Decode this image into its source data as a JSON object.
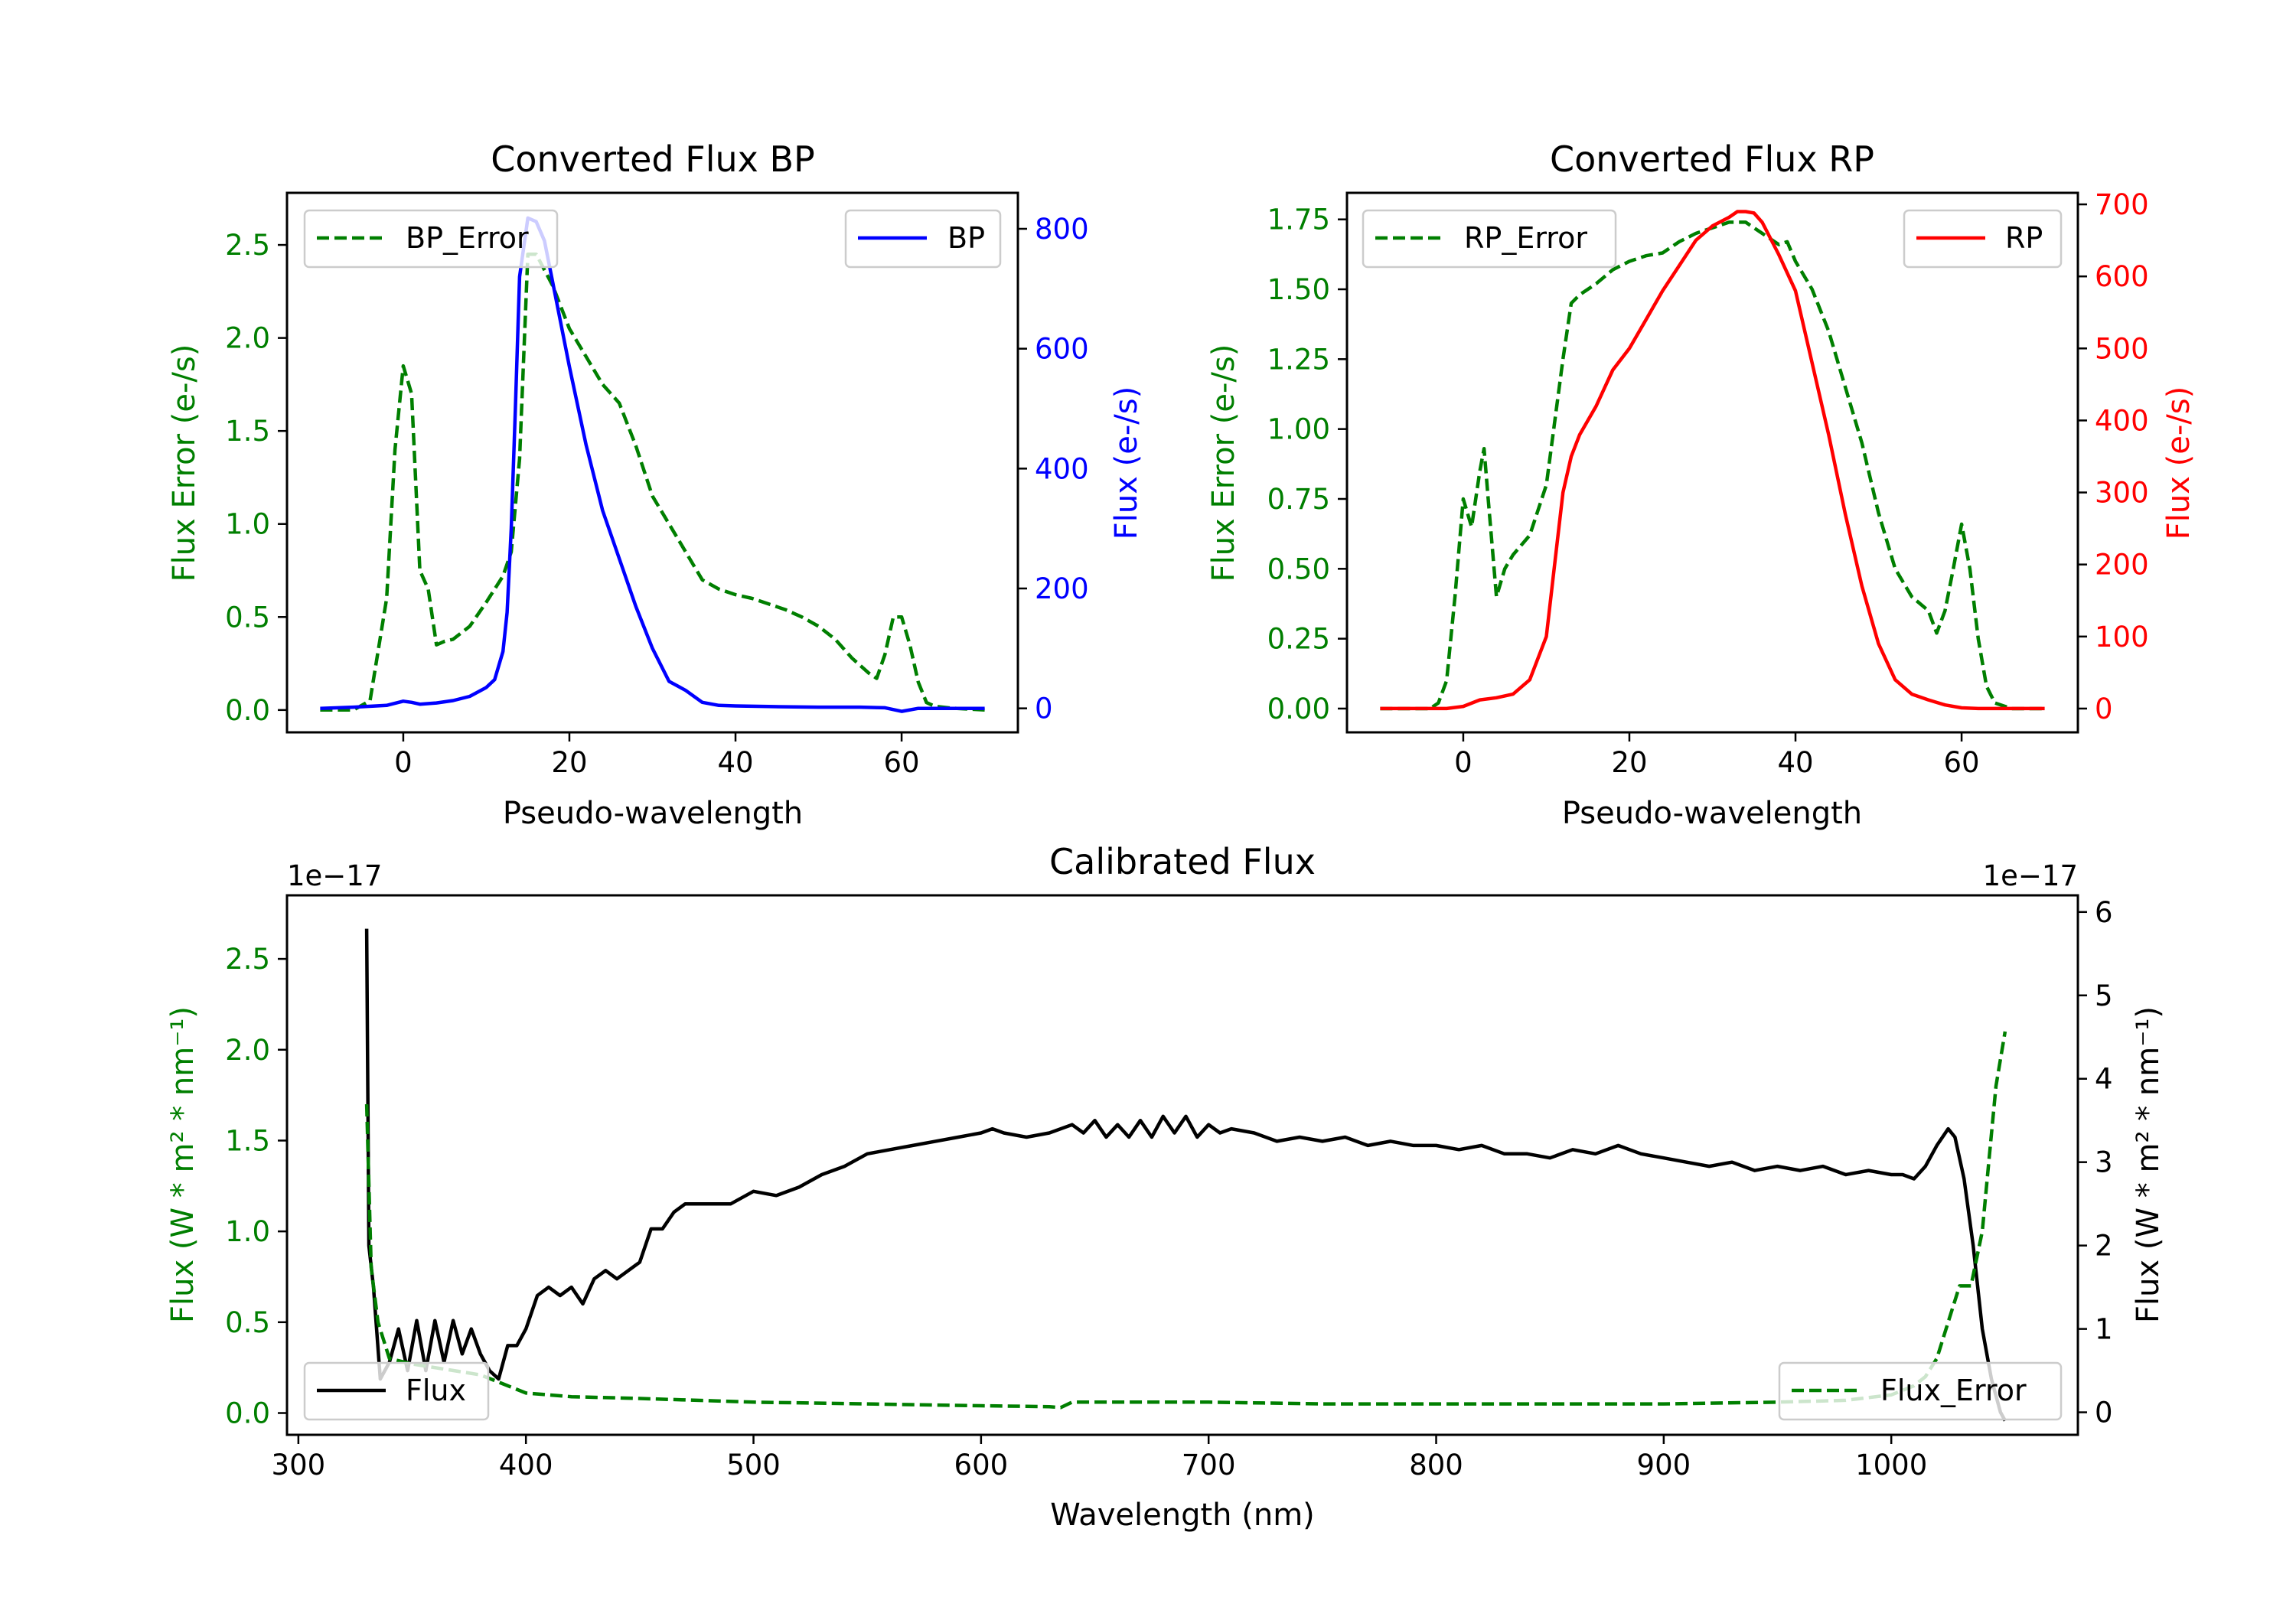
{
  "colors": {
    "bp": "#0000ff",
    "rp": "#ff0000",
    "error": "#007f00",
    "flux": "#000000",
    "axis": "#000000"
  },
  "chart_data": [
    {
      "type": "line",
      "id": "bp",
      "title": "Converted Flux BP",
      "xlabel": "Pseudo-wavelength",
      "xlim": [
        -14,
        74
      ],
      "xticks": [
        0,
        20,
        40,
        60
      ],
      "left_axis": {
        "label": "Flux Error (e-/s)",
        "color": "#007f00",
        "ylim": [
          -0.12,
          2.78
        ],
        "ticks": [
          0.0,
          0.5,
          1.0,
          1.5,
          2.0,
          2.5
        ],
        "tick_labels": [
          "0.0",
          "0.5",
          "1.0",
          "1.5",
          "2.0",
          "2.5"
        ]
      },
      "right_axis": {
        "label": "Flux (e-/s)",
        "color": "#0000ff",
        "ylim": [
          -40,
          860
        ],
        "ticks": [
          0,
          200,
          400,
          600,
          800
        ],
        "tick_labels": [
          "0",
          "200",
          "400",
          "600",
          "800"
        ]
      },
      "legend_left": "BP_Error",
      "legend_right": "BP",
      "series": [
        {
          "name": "BP_Error",
          "axis": "left",
          "style": "dashed",
          "color": "#007f00",
          "x": [
            -10,
            -6,
            -4,
            -2,
            -1,
            0,
            1,
            2,
            3,
            4,
            5,
            6,
            8,
            10,
            12,
            13,
            14,
            15,
            16,
            18,
            20,
            22,
            24,
            26,
            28,
            30,
            32,
            34,
            36,
            38,
            40,
            42,
            44,
            46,
            48,
            50,
            52,
            54,
            56,
            57,
            58,
            59,
            60,
            61,
            62,
            63,
            64,
            66,
            70
          ],
          "y": [
            0.0,
            0.0,
            0.05,
            0.6,
            1.4,
            1.85,
            1.7,
            0.75,
            0.65,
            0.35,
            0.37,
            0.38,
            0.45,
            0.58,
            0.72,
            0.85,
            1.35,
            2.45,
            2.45,
            2.28,
            2.05,
            1.9,
            1.75,
            1.65,
            1.42,
            1.15,
            1.0,
            0.85,
            0.7,
            0.65,
            0.62,
            0.6,
            0.57,
            0.54,
            0.5,
            0.45,
            0.38,
            0.28,
            0.2,
            0.17,
            0.3,
            0.5,
            0.5,
            0.35,
            0.15,
            0.04,
            0.02,
            0.01,
            0.0
          ]
        },
        {
          "name": "BP",
          "axis": "right",
          "style": "solid",
          "color": "#0000ff",
          "x": [
            -10,
            -6,
            -2,
            0,
            1,
            2,
            4,
            6,
            8,
            10,
            11,
            12,
            12.5,
            13,
            13.5,
            14,
            15,
            16,
            17,
            18,
            20,
            22,
            24,
            26,
            28,
            30,
            32,
            34,
            36,
            38,
            40,
            44,
            50,
            55,
            58,
            60,
            62,
            66,
            70
          ],
          "y": [
            0,
            2,
            5,
            12,
            10,
            7,
            9,
            13,
            20,
            35,
            48,
            95,
            160,
            300,
            500,
            720,
            818,
            812,
            780,
            710,
            570,
            440,
            330,
            250,
            170,
            100,
            45,
            30,
            10,
            5,
            4,
            3,
            2,
            2,
            1,
            -5,
            0,
            0,
            0
          ]
        }
      ]
    },
    {
      "type": "line",
      "id": "rp",
      "title": "Converted Flux RP",
      "xlabel": "Pseudo-wavelength",
      "xlim": [
        -14,
        74
      ],
      "xticks": [
        0,
        20,
        40,
        60
      ],
      "left_axis": {
        "label": "Flux Error (e-/s)",
        "color": "#007f00",
        "ylim": [
          -0.085,
          1.845
        ],
        "ticks": [
          0.0,
          0.25,
          0.5,
          0.75,
          1.0,
          1.25,
          1.5,
          1.75
        ],
        "tick_labels": [
          "0.00",
          "0.25",
          "0.50",
          "0.75",
          "1.00",
          "1.25",
          "1.50",
          "1.75"
        ]
      },
      "right_axis": {
        "label": "Flux (e-/s)",
        "color": "#ff0000",
        "ylim": [
          -33,
          716
        ],
        "ticks": [
          0,
          100,
          200,
          300,
          400,
          500,
          600,
          700
        ],
        "tick_labels": [
          "0",
          "100",
          "200",
          "300",
          "400",
          "500",
          "600",
          "700"
        ]
      },
      "legend_left": "RP_Error",
      "legend_right": "RP",
      "series": [
        {
          "name": "RP_Error",
          "axis": "left",
          "style": "dashed",
          "color": "#007f00",
          "x": [
            -10,
            -4,
            -3,
            -2,
            -1,
            0,
            1,
            2,
            2.5,
            3,
            4,
            5,
            6,
            8,
            10,
            12,
            13,
            14,
            16,
            18,
            20,
            22,
            24,
            26,
            28,
            30,
            32,
            34,
            36,
            38,
            39,
            40,
            42,
            44,
            46,
            48,
            50,
            52,
            54,
            56,
            57,
            58,
            59,
            60,
            61,
            62,
            63,
            64,
            66,
            70
          ],
          "y": [
            0.0,
            0.0,
            0.02,
            0.1,
            0.4,
            0.75,
            0.65,
            0.85,
            0.93,
            0.75,
            0.4,
            0.5,
            0.55,
            0.62,
            0.8,
            1.25,
            1.45,
            1.48,
            1.52,
            1.57,
            1.6,
            1.62,
            1.63,
            1.67,
            1.7,
            1.72,
            1.74,
            1.74,
            1.7,
            1.66,
            1.67,
            1.6,
            1.5,
            1.35,
            1.15,
            0.95,
            0.7,
            0.5,
            0.4,
            0.35,
            0.27,
            0.35,
            0.5,
            0.66,
            0.5,
            0.25,
            0.08,
            0.02,
            0.0,
            0.0
          ]
        },
        {
          "name": "RP",
          "axis": "right",
          "style": "solid",
          "color": "#ff0000",
          "x": [
            -10,
            -2,
            0,
            2,
            4,
            6,
            8,
            10,
            11,
            12,
            13,
            14,
            16,
            18,
            20,
            22,
            24,
            26,
            28,
            30,
            32,
            33,
            34,
            35,
            36,
            38,
            40,
            42,
            44,
            46,
            48,
            50,
            52,
            54,
            56,
            58,
            60,
            62,
            66,
            70
          ],
          "y": [
            0,
            0,
            3,
            12,
            15,
            20,
            40,
            100,
            200,
            300,
            350,
            380,
            420,
            470,
            500,
            540,
            580,
            615,
            650,
            670,
            682,
            690,
            690,
            688,
            675,
            630,
            580,
            480,
            380,
            270,
            170,
            90,
            40,
            20,
            12,
            5,
            1,
            0,
            0,
            0
          ]
        }
      ]
    },
    {
      "type": "line",
      "id": "calibrated",
      "title": "Calibrated Flux",
      "xlabel": "Wavelength (nm)",
      "xlim": [
        295,
        1082
      ],
      "xticks": [
        300,
        400,
        500,
        600,
        700,
        800,
        900,
        1000
      ],
      "left_axis": {
        "label": "Flux (W * m² * nm⁻¹)",
        "color": "#007f00",
        "offset_text": "1e−17",
        "ylim": [
          -0.12,
          2.85
        ],
        "ticks": [
          0.0,
          0.5,
          1.0,
          1.5,
          2.0,
          2.5
        ],
        "tick_labels": [
          "0.0",
          "0.5",
          "1.0",
          "1.5",
          "2.0",
          "2.5"
        ]
      },
      "right_axis": {
        "label": "Flux (W * m² * nm⁻¹)",
        "color": "#000000",
        "offset_text": "1e−17",
        "ylim": [
          -0.27,
          6.2
        ],
        "ticks": [
          0,
          1,
          2,
          3,
          4,
          5,
          6
        ],
        "tick_labels": [
          "0",
          "1",
          "2",
          "3",
          "4",
          "5",
          "6"
        ]
      },
      "legend_left": "Flux",
      "legend_right": "Flux_Error",
      "series": [
        {
          "name": "Flux",
          "axis": "right",
          "style": "solid",
          "color": "#000000",
          "x": [
            330,
            331,
            333,
            336,
            340,
            344,
            348,
            352,
            356,
            360,
            364,
            368,
            372,
            376,
            380,
            384,
            388,
            392,
            396,
            400,
            405,
            410,
            415,
            420,
            425,
            430,
            435,
            440,
            445,
            450,
            455,
            460,
            465,
            470,
            480,
            490,
            500,
            510,
            520,
            530,
            540,
            550,
            560,
            570,
            580,
            590,
            600,
            605,
            610,
            620,
            630,
            640,
            645,
            650,
            655,
            660,
            665,
            670,
            675,
            680,
            685,
            690,
            695,
            700,
            705,
            710,
            720,
            730,
            740,
            750,
            760,
            770,
            780,
            790,
            800,
            810,
            820,
            830,
            840,
            850,
            860,
            870,
            880,
            890,
            900,
            910,
            920,
            930,
            940,
            950,
            960,
            970,
            980,
            990,
            1000,
            1005,
            1010,
            1015,
            1020,
            1025,
            1028,
            1032,
            1036,
            1040,
            1044,
            1048,
            1050
          ],
          "y": [
            5.8,
            2.0,
            1.5,
            0.4,
            0.6,
            1.0,
            0.5,
            1.1,
            0.5,
            1.1,
            0.6,
            1.1,
            0.7,
            1.0,
            0.7,
            0.5,
            0.4,
            0.8,
            0.8,
            1.0,
            1.4,
            1.5,
            1.4,
            1.5,
            1.3,
            1.6,
            1.7,
            1.6,
            1.7,
            1.8,
            2.2,
            2.2,
            2.4,
            2.5,
            2.5,
            2.5,
            2.65,
            2.6,
            2.7,
            2.85,
            2.95,
            3.1,
            3.15,
            3.2,
            3.25,
            3.3,
            3.35,
            3.4,
            3.35,
            3.3,
            3.35,
            3.45,
            3.35,
            3.5,
            3.3,
            3.45,
            3.3,
            3.5,
            3.3,
            3.55,
            3.35,
            3.55,
            3.3,
            3.45,
            3.35,
            3.4,
            3.35,
            3.25,
            3.3,
            3.25,
            3.3,
            3.2,
            3.25,
            3.2,
            3.2,
            3.15,
            3.2,
            3.1,
            3.1,
            3.05,
            3.15,
            3.1,
            3.2,
            3.1,
            3.05,
            3.0,
            2.95,
            3.0,
            2.9,
            2.95,
            2.9,
            2.95,
            2.85,
            2.9,
            2.85,
            2.85,
            2.8,
            2.95,
            3.2,
            3.4,
            3.3,
            2.8,
            2.0,
            1.0,
            0.4,
            0.0,
            -0.1
          ]
        },
        {
          "name": "Flux_Error",
          "axis": "left",
          "style": "dashed",
          "color": "#007f00",
          "x": [
            330,
            332,
            335,
            340,
            350,
            360,
            370,
            380,
            390,
            400,
            420,
            450,
            500,
            550,
            600,
            630,
            635,
            640,
            650,
            700,
            750,
            800,
            850,
            900,
            950,
            980,
            1000,
            1010,
            1015,
            1020,
            1025,
            1030,
            1035,
            1040,
            1043,
            1046,
            1050
          ],
          "y": [
            1.7,
            0.8,
            0.5,
            0.3,
            0.27,
            0.25,
            0.23,
            0.21,
            0.16,
            0.11,
            0.09,
            0.08,
            0.06,
            0.05,
            0.04,
            0.035,
            0.03,
            0.06,
            0.06,
            0.06,
            0.05,
            0.05,
            0.05,
            0.05,
            0.06,
            0.07,
            0.1,
            0.15,
            0.2,
            0.3,
            0.5,
            0.7,
            0.7,
            1.0,
            1.4,
            1.8,
            2.1
          ]
        }
      ]
    }
  ]
}
